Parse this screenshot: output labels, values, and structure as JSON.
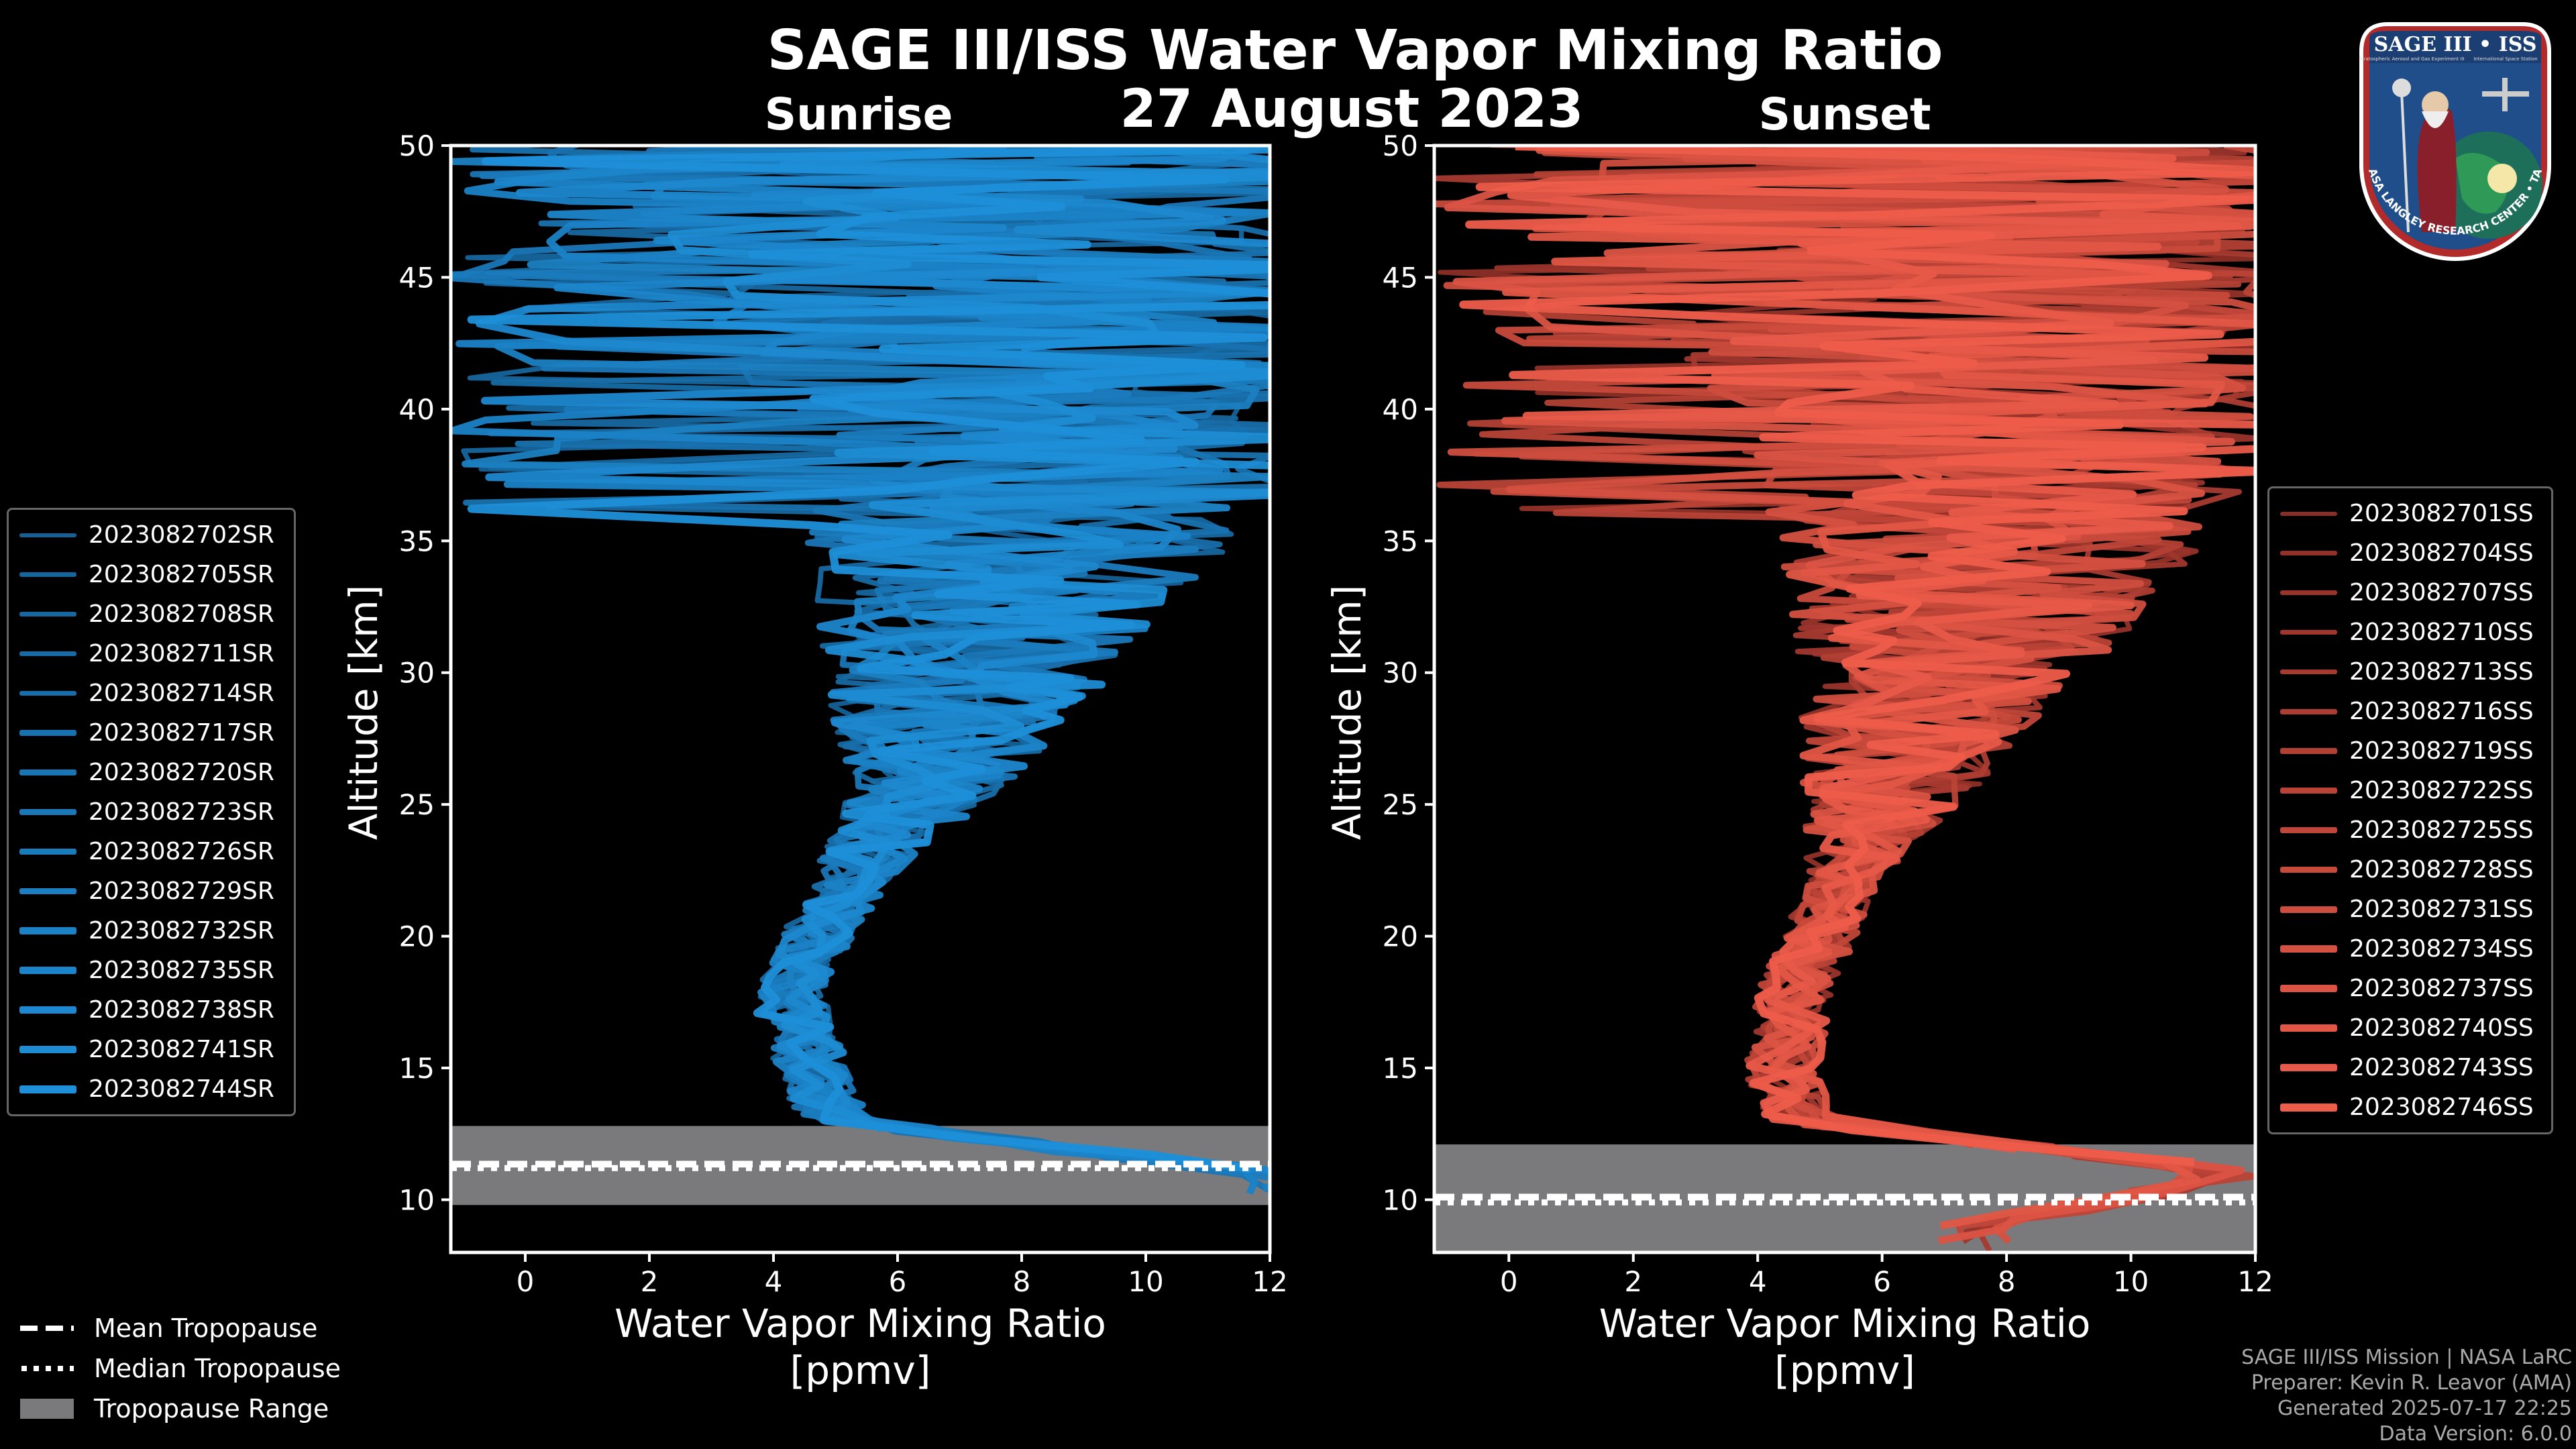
{
  "title": "SAGE III/ISS Water Vapor Mixing Ratio",
  "date": "27 August 2023",
  "footer": {
    "line1": "SAGE III/ISS Mission | NASA LaRC",
    "line2": "Preparer: Kevin R. Leavor (AMA)",
    "line3": "Generated 2025-07-17 22:25",
    "line4": "Data Version: 6.0.0"
  },
  "logo": {
    "top_text": "SAGE III • ISS",
    "sub_left": "Stratospheric Aerosol and Gas Experiment III",
    "sub_right": "International Space Station",
    "ring_text": "BALL • NASA LANGLEY RESEARCH CENTER • TAS-I • ESA"
  },
  "tropopause_legend": {
    "mean": "Mean Tropopause",
    "median": "Median Tropopause",
    "range": "Tropopause Range"
  },
  "colors": {
    "sunrise": "#1e8fd8",
    "sunset": "#ee5c4a",
    "tropopause_range": "#7a7a7c",
    "background": "#000000"
  },
  "chart_data": [
    {
      "type": "line",
      "panel": "Sunrise",
      "title": "Sunrise",
      "xlabel": "Water Vapor Mixing Ratio",
      "xlabel_unit": "[ppmv]",
      "ylabel": "Altitude [km]",
      "xlim": [
        -1.2,
        12
      ],
      "ylim": [
        8,
        50
      ],
      "xticks": [
        0,
        2,
        4,
        6,
        8,
        10,
        12
      ],
      "yticks": [
        10,
        15,
        20,
        25,
        30,
        35,
        40,
        45,
        50
      ],
      "legend_position": "left",
      "series_names": [
        "2023082702SR",
        "2023082705SR",
        "2023082708SR",
        "2023082711SR",
        "2023082714SR",
        "2023082717SR",
        "2023082720SR",
        "2023082723SR",
        "2023082726SR",
        "2023082729SR",
        "2023082732SR",
        "2023082735SR",
        "2023082738SR",
        "2023082741SR",
        "2023082744SR"
      ],
      "profile_shape": {
        "altitude_km": [
          11,
          13,
          15,
          18,
          20,
          23,
          26,
          30,
          35,
          40,
          45,
          50
        ],
        "mean_ppmv": [
          12,
          5.0,
          4.6,
          4.2,
          4.7,
          5.5,
          6.5,
          7.2,
          8.0,
          8.5,
          8.0,
          7.0
        ]
      },
      "tropopause": {
        "mean_km": 11.35,
        "median_km": 11.2,
        "range_km": [
          9.8,
          12.8
        ]
      }
    },
    {
      "type": "line",
      "panel": "Sunset",
      "title": "Sunset",
      "xlabel": "Water Vapor Mixing Ratio",
      "xlabel_unit": "[ppmv]",
      "ylabel": "Altitude [km]",
      "xlim": [
        -1.2,
        12
      ],
      "ylim": [
        8,
        50
      ],
      "xticks": [
        0,
        2,
        4,
        6,
        8,
        10,
        12
      ],
      "yticks": [
        10,
        15,
        20,
        25,
        30,
        35,
        40,
        45,
        50
      ],
      "legend_position": "right",
      "series_names": [
        "2023082701SS",
        "2023082704SS",
        "2023082707SS",
        "2023082710SS",
        "2023082713SS",
        "2023082716SS",
        "2023082719SS",
        "2023082722SS",
        "2023082725SS",
        "2023082728SS",
        "2023082731SS",
        "2023082734SS",
        "2023082737SS",
        "2023082740SS",
        "2023082743SS",
        "2023082746SS"
      ],
      "profile_shape": {
        "altitude_km": [
          9,
          11,
          13,
          15,
          18,
          20,
          23,
          26,
          30,
          35,
          40,
          45,
          50
        ],
        "mean_ppmv": [
          7.5,
          12,
          4.6,
          4.4,
          4.6,
          5.0,
          5.5,
          6.2,
          7.0,
          7.8,
          8.0,
          7.5,
          6.5
        ]
      },
      "tropopause": {
        "mean_km": 10.1,
        "median_km": 9.9,
        "range_km": [
          8,
          12.1
        ]
      }
    }
  ]
}
